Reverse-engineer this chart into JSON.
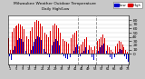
{
  "title1": "Milwaukee Weather Outdoor Temperature",
  "title2": "Daily High/Low",
  "background_color": "#c8c8c8",
  "plot_bg": "#ffffff",
  "ylim": [
    -25,
    90
  ],
  "ytick_vals": [
    0,
    10,
    20,
    30,
    40,
    50,
    60,
    70,
    80
  ],
  "ytick_labels": [
    "0",
    "10",
    "20",
    "30",
    "40",
    "50",
    "60",
    "70",
    "80"
  ],
  "high_color": "#dd0000",
  "low_color": "#0000cc",
  "vline_color": "#888888",
  "vline_positions": [
    41.5,
    52.5
  ],
  "highs": [
    38,
    10,
    52,
    60,
    65,
    68,
    72,
    70,
    65,
    58,
    50,
    42,
    35,
    55,
    62,
    70,
    75,
    80,
    78,
    72,
    65,
    58,
    50,
    45,
    40,
    55,
    62,
    68,
    72,
    68,
    60,
    50,
    42,
    35,
    30,
    28,
    25,
    32,
    38,
    45,
    50,
    55,
    12,
    18,
    22,
    28,
    35,
    40,
    30,
    20,
    15,
    10,
    18,
    25,
    30,
    35,
    40,
    45,
    38,
    28,
    20,
    15,
    10,
    5,
    12,
    18,
    25,
    30,
    28,
    22,
    15,
    10,
    5
  ],
  "lows": [
    -5,
    -15,
    10,
    18,
    25,
    32,
    38,
    35,
    28,
    18,
    8,
    0,
    -5,
    10,
    18,
    28,
    35,
    42,
    40,
    32,
    22,
    12,
    5,
    -2,
    -8,
    10,
    20,
    28,
    35,
    30,
    20,
    10,
    2,
    -5,
    -10,
    -12,
    -15,
    -8,
    0,
    8,
    15,
    22,
    -8,
    -5,
    2,
    8,
    15,
    20,
    10,
    0,
    -8,
    -15,
    -5,
    2,
    8,
    15,
    20,
    25,
    18,
    8,
    -2,
    -8,
    -12,
    -15,
    -8,
    -2,
    5,
    12,
    10,
    2,
    -5,
    -12,
    -18
  ],
  "num_bars": 73
}
